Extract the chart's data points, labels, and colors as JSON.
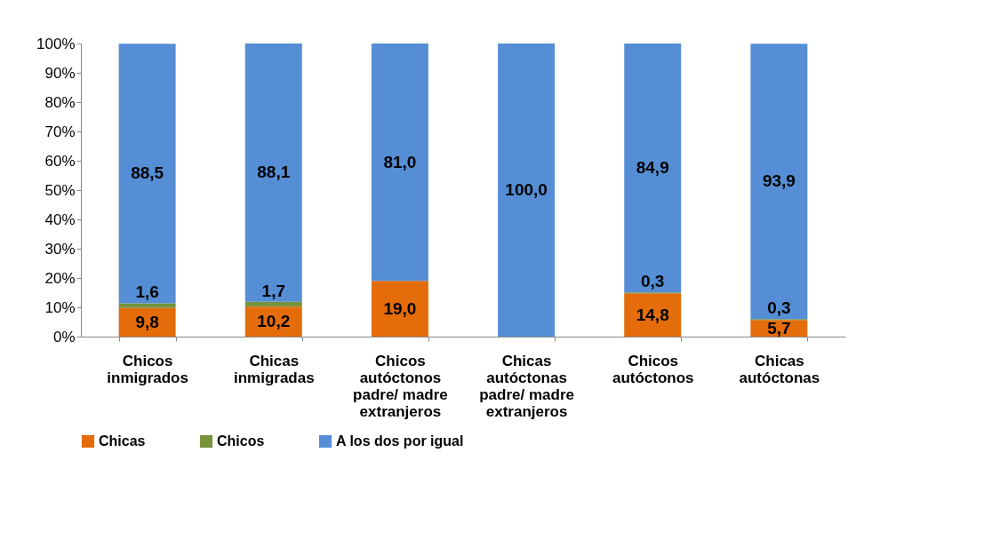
{
  "chart_data": {
    "type": "bar",
    "stacked": true,
    "categories": [
      "Chicos inmigrados",
      "Chicas inmigradas",
      "Chicos autóctonos padre/ madre extranjeros",
      "Chicas autóctonas padre/ madre extranjeros",
      "Chicos autóctonos",
      "Chicas autóctonas"
    ],
    "series": [
      {
        "name": "Chicas",
        "color": "#e46c0a",
        "values": [
          9.8,
          10.2,
          19.0,
          0,
          14.8,
          5.7
        ],
        "value_labels": [
          "9,8",
          "10,2",
          "19,0",
          null,
          "14,8",
          "5,7"
        ]
      },
      {
        "name": "Chicos",
        "color": "#77933c",
        "values": [
          1.6,
          1.7,
          0,
          0,
          0.3,
          0.3
        ],
        "value_labels": [
          "1,6",
          "1,7",
          null,
          null,
          "0,3",
          "0,3"
        ]
      },
      {
        "name": "A los dos por igual",
        "color": "#558ed5",
        "values": [
          88.5,
          88.1,
          81.0,
          100.0,
          84.9,
          93.9
        ],
        "value_labels": [
          "88,5",
          "88,1",
          "81,0",
          "100,0",
          "84,9",
          "93,9"
        ]
      }
    ],
    "ylim": [
      0,
      100
    ],
    "yticks": [
      {
        "value": 0,
        "label": "0%"
      },
      {
        "value": 10,
        "label": "10%"
      },
      {
        "value": 20,
        "label": "20%"
      },
      {
        "value": 30,
        "label": "30%"
      },
      {
        "value": 40,
        "label": "40%"
      },
      {
        "value": 50,
        "label": "50%"
      },
      {
        "value": 60,
        "label": "60%"
      },
      {
        "value": 70,
        "label": "70%"
      },
      {
        "value": 80,
        "label": "80%"
      },
      {
        "value": 90,
        "label": "90%"
      },
      {
        "value": 100,
        "label": "100%"
      }
    ],
    "grid": false,
    "legend": "bottom"
  }
}
